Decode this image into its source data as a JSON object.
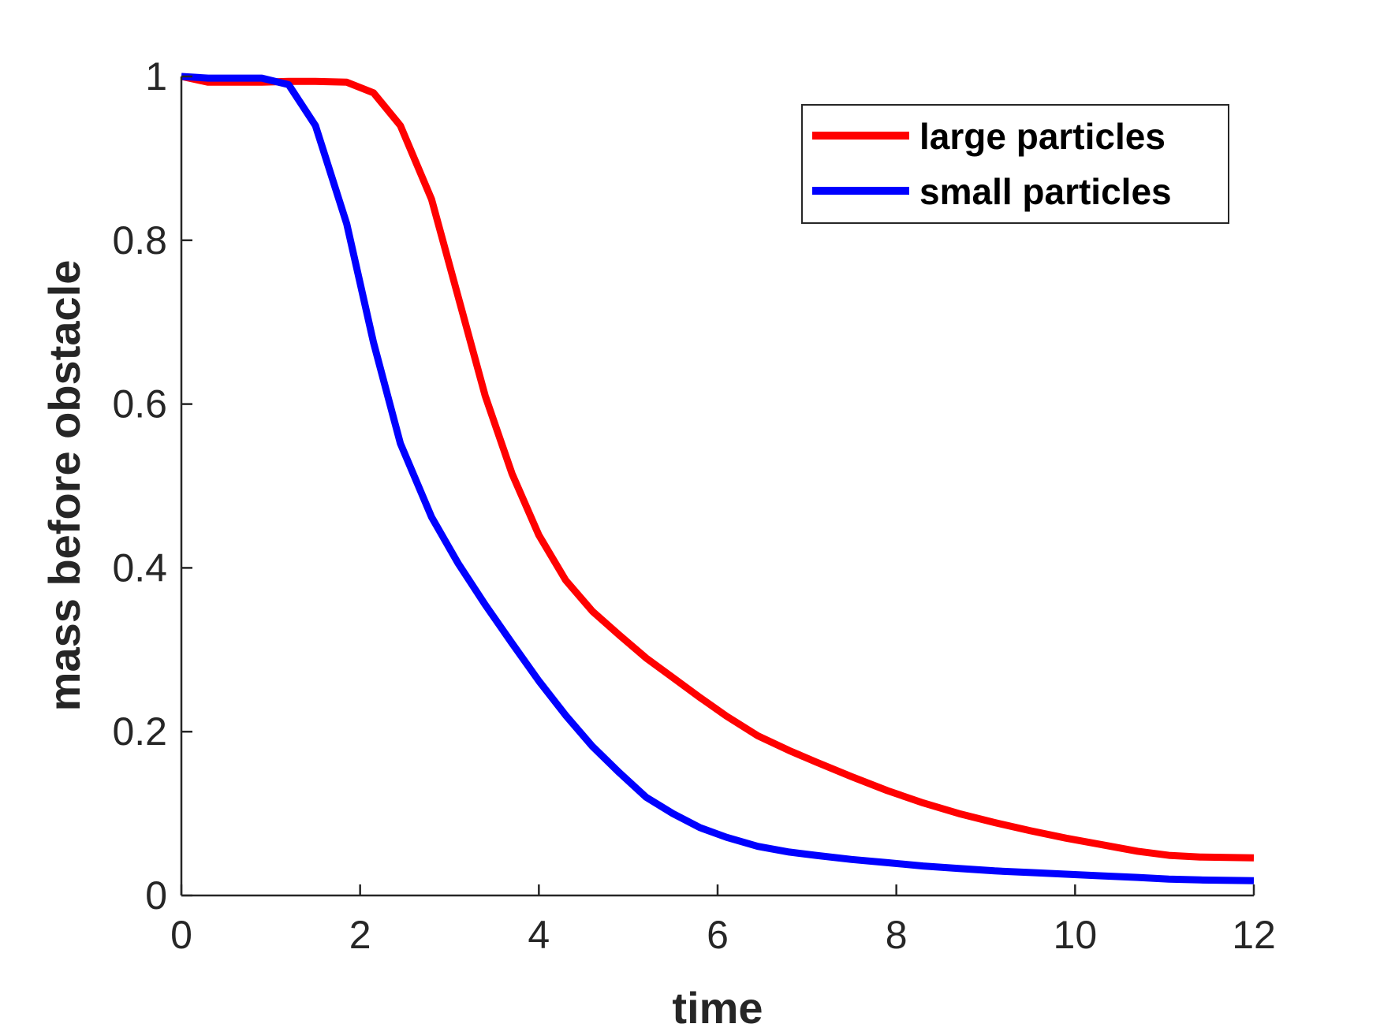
{
  "chart_data": {
    "type": "line",
    "title": "",
    "xlabel": "time",
    "ylabel": "mass before obstacle",
    "xlim": [
      0,
      12
    ],
    "ylim": [
      0,
      1
    ],
    "xticks": [
      0,
      2,
      4,
      6,
      8,
      10,
      12
    ],
    "yticks": [
      0,
      0.2,
      0.4,
      0.6,
      0.8,
      1
    ],
    "xtick_labels": [
      "0",
      "2",
      "4",
      "6",
      "8",
      "10",
      "12"
    ],
    "ytick_labels": [
      "0",
      "0.2",
      "0.4",
      "0.6",
      "0.8",
      "1"
    ],
    "grid": false,
    "legend_position": "top-right",
    "series": [
      {
        "name": "large particles",
        "color": "#ff0000",
        "x": [
          0,
          0.3,
          0.6,
          0.9,
          1.2,
          1.5,
          1.85,
          2.15,
          2.45,
          2.8,
          3.1,
          3.4,
          3.7,
          4.0,
          4.3,
          4.6,
          4.9,
          5.2,
          5.5,
          5.8,
          6.1,
          6.45,
          6.8,
          7.1,
          7.5,
          7.9,
          8.3,
          8.7,
          9.1,
          9.5,
          9.9,
          10.3,
          10.7,
          11.05,
          11.4,
          12.0
        ],
        "y": [
          1.0,
          0.993,
          0.993,
          0.993,
          0.994,
          0.994,
          0.993,
          0.98,
          0.94,
          0.85,
          0.73,
          0.61,
          0.515,
          0.44,
          0.385,
          0.347,
          0.318,
          0.29,
          0.266,
          0.242,
          0.219,
          0.195,
          0.177,
          0.163,
          0.145,
          0.128,
          0.113,
          0.1,
          0.089,
          0.079,
          0.07,
          0.062,
          0.054,
          0.049,
          0.047,
          0.046
        ]
      },
      {
        "name": "small particles",
        "color": "#0000ff",
        "x": [
          0,
          0.3,
          0.6,
          0.9,
          1.2,
          1.5,
          1.85,
          2.15,
          2.45,
          2.8,
          3.1,
          3.4,
          3.7,
          4.0,
          4.3,
          4.6,
          4.9,
          5.2,
          5.5,
          5.8,
          6.1,
          6.45,
          6.8,
          7.1,
          7.5,
          7.9,
          8.3,
          8.7,
          9.1,
          9.5,
          9.9,
          10.3,
          10.7,
          11.05,
          11.4,
          12.0
        ],
        "y": [
          1.0,
          0.998,
          0.998,
          0.998,
          0.99,
          0.94,
          0.82,
          0.675,
          0.552,
          0.462,
          0.405,
          0.355,
          0.308,
          0.262,
          0.22,
          0.182,
          0.15,
          0.12,
          0.1,
          0.083,
          0.071,
          0.06,
          0.053,
          0.049,
          0.044,
          0.04,
          0.036,
          0.033,
          0.03,
          0.028,
          0.026,
          0.024,
          0.022,
          0.02,
          0.019,
          0.018
        ]
      }
    ]
  }
}
